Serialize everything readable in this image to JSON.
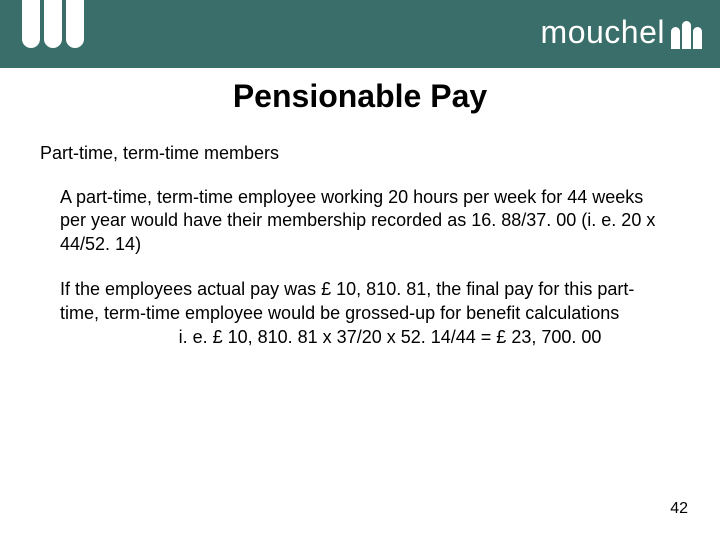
{
  "header": {
    "brand": "mouchel",
    "bar_color": "#3a6e6a",
    "text_color": "#ffffff"
  },
  "slide": {
    "title": "Pensionable Pay",
    "subtitle": "Part-time, term-time members",
    "para1": "A part-time, term-time employee working 20 hours per week for 44 weeks per year would have their membership recorded as 16. 88/37. 00 (i. e. 20 x 44/52. 14)",
    "para2": "If the employees actual pay was £ 10, 810. 81, the final pay for this part-time, term-time employee would be grossed-up for benefit calculations",
    "calc": "i. e. £ 10, 810. 81 x 37/20 x 52. 14/44 = £ 23, 700. 00",
    "page_number": "42"
  }
}
